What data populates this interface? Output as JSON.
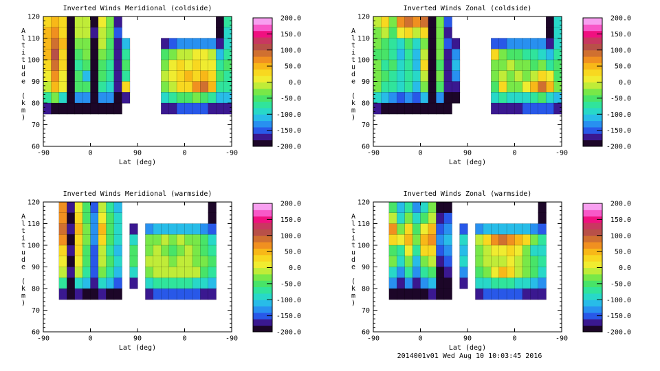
{
  "page": {
    "background": "#ffffff"
  },
  "footer": {
    "timestamp": "2014001v01 Wed Aug 10 10:03:45 2016"
  },
  "palette": [
    "#1c0628",
    "#3a1890",
    "#2858e8",
    "#2890f0",
    "#28bce8",
    "#28d8c8",
    "#30e49c",
    "#48e468",
    "#78e848",
    "#c0ec38",
    "#f0ec30",
    "#f8d820",
    "#f8b818",
    "#f09020",
    "#d07030",
    "#b85048",
    "#c83860",
    "#f01080",
    "#f858c8",
    "#f8a0f0"
  ],
  "value_range": [
    -200,
    200
  ],
  "chart_data": [
    {
      "type": "filled-contour-heatmap",
      "title": "Inverted Winds Meridional (coldside)",
      "xlabel": "Lat (deg)",
      "ylabel": "Altitude (km)",
      "x_tick_labels": [
        "-90",
        "0",
        "90",
        "0",
        "-90"
      ],
      "y_ticks": [
        60,
        70,
        80,
        90,
        100,
        110,
        120
      ],
      "ylim": [
        60,
        120
      ],
      "alt_top": 120,
      "alt_step": 5,
      "n_cols": 24,
      "colorbar": {
        "min": -200,
        "max": 200,
        "labels": [
          "200.0",
          "150.0",
          "100.0",
          "50.0",
          "0.0",
          "-50.0",
          "-100.0",
          "-150.0",
          "-200.0"
        ],
        "tick_values": [
          150,
          100,
          50,
          0,
          -50,
          -100,
          -150
        ]
      },
      "grid": [
        [
          30,
          50,
          20,
          -200,
          -20,
          -10,
          -190,
          0,
          -30,
          -170,
          null,
          null,
          null,
          null,
          null,
          null,
          null,
          null,
          null,
          null,
          null,
          null,
          -200,
          -80
        ],
        [
          40,
          70,
          30,
          -200,
          -20,
          -20,
          -180,
          -10,
          -40,
          -160,
          null,
          null,
          null,
          null,
          null,
          null,
          null,
          null,
          null,
          null,
          null,
          null,
          -200,
          -90
        ],
        [
          50,
          90,
          40,
          -200,
          -40,
          -30,
          -190,
          -20,
          -50,
          -170,
          -120,
          null,
          null,
          null,
          null,
          -180,
          -150,
          -140,
          -140,
          -130,
          -130,
          -140,
          -180,
          -90
        ],
        [
          40,
          110,
          30,
          -200,
          -60,
          -40,
          -200,
          -30,
          -60,
          -180,
          -70,
          null,
          null,
          null,
          null,
          -60,
          -30,
          -20,
          -10,
          0,
          10,
          -10,
          -120,
          -70
        ],
        [
          20,
          80,
          20,
          -200,
          -70,
          -60,
          -190,
          -50,
          -70,
          -170,
          -60,
          null,
          null,
          null,
          null,
          -30,
          0,
          20,
          10,
          20,
          10,
          0,
          -80,
          -60
        ],
        [
          0,
          60,
          10,
          -200,
          -60,
          -110,
          -200,
          -60,
          -80,
          -180,
          -80,
          null,
          null,
          null,
          null,
          -20,
          10,
          30,
          40,
          30,
          40,
          20,
          -60,
          -70
        ],
        [
          -20,
          40,
          0,
          -200,
          -50,
          -60,
          -190,
          -70,
          -90,
          -170,
          20,
          null,
          null,
          null,
          null,
          -30,
          -10,
          20,
          30,
          60,
          80,
          50,
          -70,
          -80
        ],
        [
          -80,
          -40,
          -100,
          -200,
          -130,
          -140,
          -200,
          -130,
          -140,
          -190,
          -170,
          null,
          null,
          null,
          null,
          -90,
          -70,
          -60,
          -50,
          -40,
          -60,
          -80,
          -120,
          -110
        ],
        [
          -180,
          -190,
          -200,
          -200,
          -200,
          -200,
          -200,
          -190,
          -200,
          -200,
          null,
          null,
          null,
          null,
          null,
          -180,
          -170,
          -160,
          -160,
          -150,
          -160,
          -170,
          -180,
          -170
        ]
      ]
    },
    {
      "type": "filled-contour-heatmap",
      "title": "Inverted Winds Zonal (coldside)",
      "xlabel": "Lat (deg)",
      "ylabel": "Altitude (km)",
      "x_tick_labels": [
        "-90",
        "0",
        "90",
        "0",
        "-90"
      ],
      "y_ticks": [
        60,
        70,
        80,
        90,
        100,
        110,
        120
      ],
      "ylim": [
        60,
        120
      ],
      "alt_top": 120,
      "alt_step": 5,
      "n_cols": 24,
      "colorbar": {
        "min": -200,
        "max": 200,
        "labels": [
          "200.0",
          "150.0",
          "100.0",
          "50.0",
          "0.0",
          "-50.0",
          "-100.0",
          "-150.0",
          "-200.0"
        ],
        "tick_values": [
          150,
          100,
          50,
          0,
          -50,
          -100,
          -150
        ]
      },
      "grid": [
        [
          -10,
          30,
          -40,
          70,
          90,
          60,
          80,
          -200,
          -30,
          -160,
          null,
          null,
          null,
          null,
          null,
          null,
          null,
          null,
          null,
          null,
          null,
          null,
          -200,
          -90
        ],
        [
          -30,
          -20,
          -60,
          10,
          30,
          -20,
          20,
          -190,
          -40,
          -170,
          null,
          null,
          null,
          null,
          null,
          null,
          null,
          null,
          null,
          null,
          null,
          null,
          -200,
          -100
        ],
        [
          -40,
          -50,
          -80,
          -90,
          -50,
          -100,
          -30,
          -200,
          -30,
          -160,
          -170,
          null,
          null,
          null,
          null,
          -160,
          -150,
          -140,
          -140,
          -130,
          -130,
          -140,
          -180,
          -100
        ],
        [
          -50,
          -60,
          -70,
          -110,
          -70,
          -120,
          -20,
          -190,
          -40,
          -170,
          -130,
          null,
          null,
          null,
          null,
          30,
          -40,
          -50,
          -60,
          -70,
          -80,
          -90,
          -120,
          -70
        ],
        [
          -40,
          -70,
          -60,
          -100,
          -80,
          -110,
          30,
          -200,
          -50,
          -180,
          -110,
          null,
          null,
          null,
          null,
          -30,
          -30,
          -20,
          -30,
          -40,
          -50,
          -40,
          -80,
          -60
        ],
        [
          -30,
          -60,
          -70,
          -90,
          -70,
          -100,
          -20,
          -190,
          -40,
          -170,
          -140,
          null,
          null,
          null,
          null,
          -40,
          -20,
          -30,
          -20,
          -30,
          -20,
          30,
          0,
          -50
        ],
        [
          -40,
          -70,
          -80,
          -100,
          -80,
          -110,
          -40,
          -200,
          -60,
          -180,
          -180,
          null,
          null,
          null,
          null,
          -50,
          30,
          -40,
          -30,
          10,
          40,
          80,
          50,
          -40
        ],
        [
          -100,
          -120,
          -130,
          -150,
          -140,
          -160,
          -120,
          -200,
          -130,
          -190,
          -200,
          null,
          null,
          null,
          null,
          -100,
          -80,
          -90,
          -100,
          -90,
          -80,
          -60,
          -90,
          -110
        ],
        [
          -180,
          -190,
          -200,
          -200,
          -200,
          -200,
          -190,
          -200,
          -190,
          -200,
          null,
          null,
          null,
          null,
          null,
          -180,
          -170,
          -170,
          -170,
          -160,
          -160,
          -150,
          -160,
          -170
        ]
      ]
    },
    {
      "type": "filled-contour-heatmap",
      "title": "Inverted Winds Meridional (warmside)",
      "xlabel": "Lat (deg)",
      "ylabel": "Altitude (km)",
      "x_tick_labels": [
        "-90",
        "0",
        "90",
        "0",
        "-90"
      ],
      "y_ticks": [
        60,
        70,
        80,
        90,
        100,
        110,
        120
      ],
      "ylim": [
        60,
        120
      ],
      "alt_top": 120,
      "alt_step": 5,
      "n_cols": 24,
      "colorbar": {
        "min": -200,
        "max": 200,
        "labels": [
          "200.0",
          "150.0",
          "100.0",
          "50.0",
          "0.0",
          "-50.0",
          "-100.0",
          "-150.0",
          "-200.0"
        ],
        "tick_values": [
          150,
          100,
          50,
          0,
          -50,
          -100,
          -150
        ]
      },
      "grid": [
        [
          null,
          null,
          60,
          -180,
          10,
          -60,
          -150,
          -20,
          -70,
          -120,
          null,
          null,
          null,
          null,
          null,
          null,
          null,
          null,
          null,
          null,
          null,
          -200,
          null,
          null
        ],
        [
          null,
          null,
          70,
          -190,
          20,
          -50,
          -140,
          0,
          -60,
          -100,
          null,
          null,
          null,
          null,
          null,
          null,
          null,
          null,
          null,
          null,
          null,
          -200,
          null,
          null
        ],
        [
          null,
          null,
          80,
          -180,
          40,
          -40,
          -130,
          40,
          -50,
          -90,
          null,
          -170,
          null,
          -130,
          -120,
          -120,
          -110,
          -110,
          -120,
          -120,
          -130,
          -160,
          null,
          null
        ],
        [
          null,
          null,
          60,
          -190,
          30,
          -30,
          -140,
          20,
          -60,
          -100,
          null,
          -90,
          null,
          -40,
          -30,
          -20,
          -30,
          -20,
          -30,
          -40,
          -60,
          -90,
          null,
          null
        ],
        [
          null,
          null,
          20,
          -180,
          20,
          -50,
          -150,
          -10,
          -70,
          -110,
          null,
          -50,
          null,
          -30,
          -20,
          -30,
          -50,
          -30,
          -20,
          -30,
          -50,
          -70,
          null,
          null
        ],
        [
          null,
          null,
          0,
          -190,
          0,
          -60,
          -160,
          -20,
          -60,
          -100,
          null,
          -60,
          null,
          -20,
          -10,
          -20,
          -30,
          -10,
          -20,
          -30,
          -40,
          -60,
          null,
          null
        ],
        [
          null,
          null,
          -10,
          -180,
          -20,
          -70,
          -150,
          -30,
          -70,
          -110,
          null,
          -100,
          null,
          -30,
          -20,
          -10,
          -20,
          -20,
          -10,
          -20,
          -50,
          -70,
          null,
          null
        ],
        [
          null,
          null,
          -70,
          -200,
          -90,
          -120,
          -180,
          -100,
          -120,
          -150,
          null,
          -170,
          null,
          -90,
          -80,
          -70,
          -80,
          -70,
          -80,
          -90,
          -100,
          -110,
          null,
          null
        ],
        [
          null,
          null,
          -170,
          -200,
          -180,
          -190,
          -200,
          -180,
          -190,
          -200,
          null,
          null,
          null,
          -170,
          -160,
          -160,
          -160,
          -150,
          -160,
          -160,
          -170,
          -180,
          null,
          null
        ]
      ]
    },
    {
      "type": "filled-contour-heatmap",
      "title": "Inverted Winds Zonal (warmside)",
      "xlabel": "Lat (deg)",
      "ylabel": "Altitude (km)",
      "x_tick_labels": [
        "-90",
        "0",
        "90",
        "0",
        "-90"
      ],
      "y_ticks": [
        60,
        70,
        80,
        90,
        100,
        110,
        120
      ],
      "ylim": [
        60,
        120
      ],
      "alt_top": 120,
      "alt_step": 5,
      "n_cols": 24,
      "colorbar": {
        "min": -200,
        "max": 200,
        "labels": [
          "200.0",
          "150.0",
          "100.0",
          "50.0",
          "0.0",
          "-50.0",
          "-100.0",
          "-150.0",
          "-200.0"
        ],
        "tick_values": [
          150,
          100,
          50,
          0,
          -50,
          -100,
          -150
        ]
      },
      "grid": [
        [
          null,
          null,
          -60,
          -120,
          -80,
          -140,
          -100,
          -40,
          -200,
          -190,
          null,
          null,
          null,
          null,
          null,
          null,
          null,
          null,
          null,
          null,
          null,
          -200,
          null,
          null
        ],
        [
          null,
          null,
          -20,
          -90,
          -40,
          -100,
          -60,
          -20,
          -180,
          -160,
          null,
          null,
          null,
          null,
          null,
          null,
          null,
          null,
          null,
          null,
          null,
          -200,
          null,
          null
        ],
        [
          null,
          null,
          60,
          -30,
          20,
          -60,
          10,
          40,
          -160,
          -130,
          null,
          -150,
          null,
          -130,
          -120,
          -110,
          -110,
          -110,
          -120,
          -120,
          -130,
          -160,
          null,
          null
        ],
        [
          null,
          null,
          30,
          0,
          40,
          -30,
          50,
          60,
          -140,
          -110,
          null,
          -100,
          null,
          -20,
          30,
          60,
          80,
          70,
          40,
          20,
          -40,
          -80,
          null,
          null
        ],
        [
          null,
          null,
          -60,
          -80,
          0,
          -70,
          20,
          30,
          -160,
          -130,
          null,
          -120,
          null,
          -30,
          -10,
          0,
          10,
          20,
          10,
          -30,
          -90,
          -100,
          null,
          null
        ],
        [
          null,
          null,
          -40,
          -100,
          -40,
          -110,
          -30,
          -10,
          -180,
          -160,
          null,
          -90,
          null,
          -40,
          -20,
          -20,
          -10,
          0,
          -20,
          -40,
          -60,
          -70,
          null,
          null
        ],
        [
          null,
          null,
          -90,
          -130,
          -80,
          -140,
          -70,
          -50,
          -190,
          -180,
          null,
          -130,
          null,
          -50,
          -30,
          0,
          40,
          30,
          -10,
          -30,
          -50,
          -90,
          null,
          null
        ],
        [
          null,
          null,
          -140,
          -170,
          -140,
          -170,
          -130,
          -120,
          -200,
          -190,
          null,
          -180,
          null,
          -100,
          -90,
          -80,
          -70,
          -80,
          -90,
          -100,
          -110,
          -130,
          null,
          null
        ],
        [
          null,
          null,
          -190,
          -200,
          -190,
          -200,
          -190,
          -180,
          -200,
          -200,
          null,
          null,
          null,
          -170,
          -160,
          -160,
          -150,
          -160,
          -160,
          -170,
          -170,
          -180,
          null,
          null
        ]
      ]
    }
  ]
}
